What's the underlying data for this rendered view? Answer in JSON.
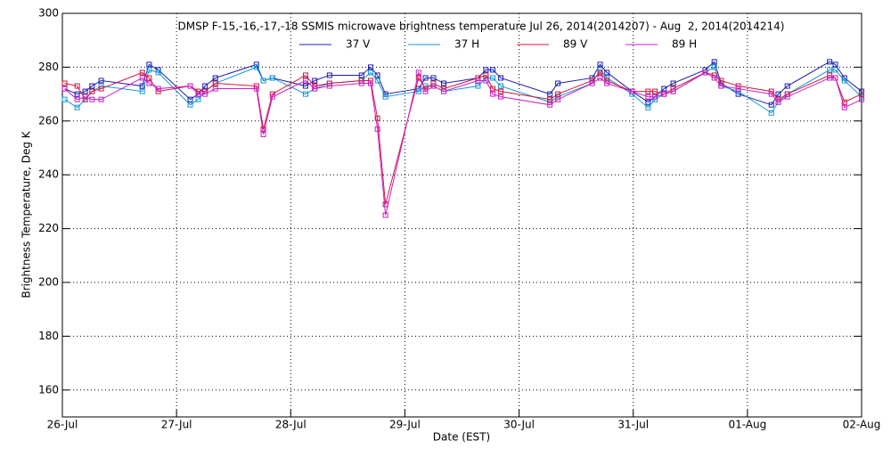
{
  "chart_data": {
    "type": "line",
    "title": "DMSP F-15,-16,-17,-18 SSMIS microwave brightness temperature Jul 26, 2014(2014207) - Aug  2, 2014(2014214)",
    "x_label": "Date (EST)",
    "y_label": "Brightness Temperature, Deg K",
    "x": [
      0.02,
      0.13,
      0.2,
      0.26,
      0.34,
      0.7,
      0.76,
      0.84,
      1.12,
      1.19,
      1.25,
      1.34,
      1.7,
      1.76,
      1.84,
      2.13,
      2.21,
      2.34,
      2.62,
      2.7,
      2.76,
      2.83,
      3.12,
      3.18,
      3.25,
      3.34,
      3.64,
      3.71,
      3.77,
      3.84,
      4.27,
      4.34,
      4.64,
      4.71,
      4.77,
      4.99,
      5.13,
      5.19,
      5.27,
      5.35,
      5.63,
      5.71,
      5.77,
      5.92,
      6.21,
      6.27,
      6.35,
      6.72,
      6.77,
      6.85,
      7.0
    ],
    "series": [
      {
        "name": "37 V",
        "color": "#1c1cb4",
        "values": [
          272,
          270,
          271,
          273,
          275,
          273,
          281,
          279,
          268,
          270,
          273,
          276,
          281,
          275,
          276,
          273,
          275,
          277,
          277,
          280,
          277,
          270,
          272,
          276,
          276,
          274,
          276,
          279,
          279,
          276,
          270,
          274,
          276,
          281,
          278,
          271,
          267,
          269,
          272,
          274,
          279,
          282,
          274,
          270,
          266,
          270,
          273,
          282,
          281,
          276,
          271
        ]
      },
      {
        "name": "37 H",
        "color": "#1496d2",
        "values": [
          268,
          265,
          268,
          271,
          273,
          271,
          279,
          278,
          266,
          268,
          271,
          274,
          280,
          275,
          276,
          270,
          272,
          274,
          275,
          278,
          275,
          269,
          271,
          273,
          273,
          271,
          273,
          276,
          276,
          273,
          267,
          269,
          274,
          279,
          276,
          270,
          265,
          268,
          270,
          271,
          278,
          280,
          273,
          271,
          263,
          267,
          270,
          279,
          279,
          275,
          269
        ]
      },
      {
        "name": "89 V",
        "color": "#d2143c",
        "values": [
          274,
          273,
          268,
          271,
          272,
          278,
          276,
          271,
          273,
          271,
          271,
          274,
          273,
          257,
          270,
          277,
          273,
          274,
          275,
          275,
          261,
          229,
          276,
          272,
          274,
          272,
          276,
          277,
          272,
          271,
          268,
          270,
          275,
          278,
          275,
          271,
          271,
          271,
          270,
          272,
          278,
          277,
          275,
          273,
          271,
          268,
          270,
          277,
          276,
          267,
          270
        ]
      },
      {
        "name": "89 H",
        "color": "#c81ec8",
        "values": [
          272,
          268,
          269,
          268,
          268,
          276,
          274,
          272,
          273,
          270,
          270,
          272,
          272,
          255,
          269,
          275,
          272,
          273,
          274,
          274,
          257,
          225,
          278,
          271,
          273,
          271,
          275,
          275,
          270,
          269,
          266,
          268,
          274,
          276,
          274,
          271,
          269,
          269,
          270,
          271,
          278,
          276,
          273,
          272,
          270,
          267,
          269,
          276,
          276,
          265,
          268
        ]
      }
    ],
    "xlim": [
      0,
      7
    ],
    "xticks": [
      {
        "value": 0,
        "label": "26-Jul"
      },
      {
        "value": 1,
        "label": "27-Jul"
      },
      {
        "value": 2,
        "label": "28-Jul"
      },
      {
        "value": 3,
        "label": "29-Jul"
      },
      {
        "value": 4,
        "label": "30-Jul"
      },
      {
        "value": 5,
        "label": "31-Jul"
      },
      {
        "value": 6,
        "label": "01-Aug"
      },
      {
        "value": 7,
        "label": "02-Aug"
      }
    ],
    "ylim": [
      150,
      300
    ],
    "yticks": [
      160,
      180,
      200,
      220,
      240,
      260,
      280,
      300
    ],
    "grid": true
  }
}
